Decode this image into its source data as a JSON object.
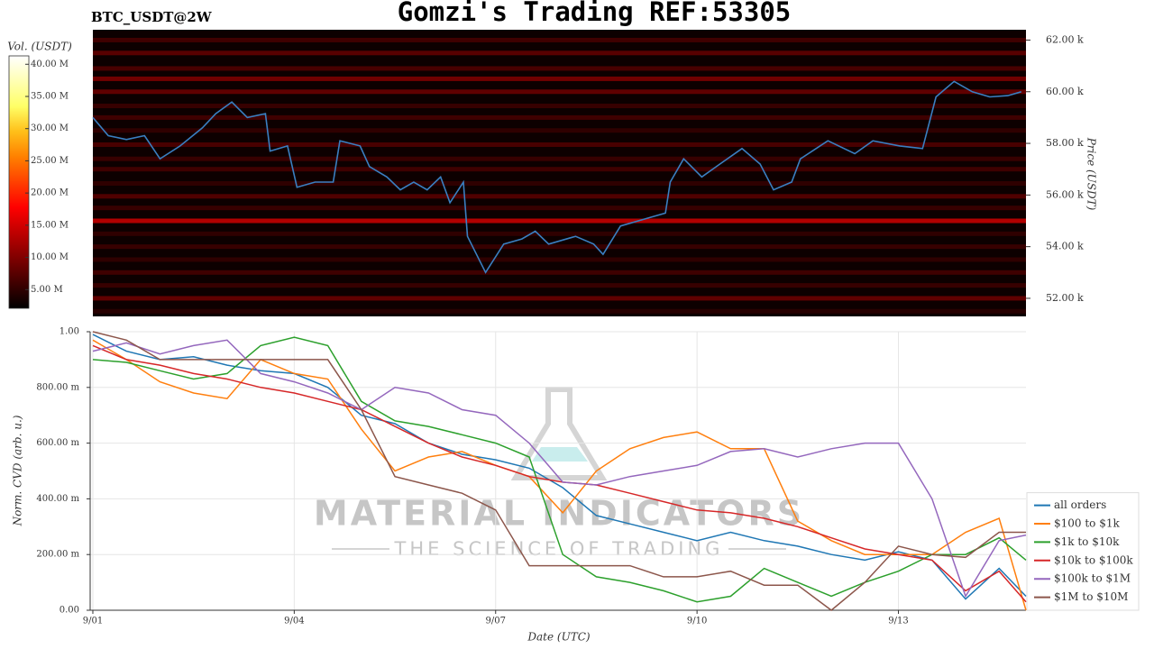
{
  "title": "Gomzi's Trading REF:53305",
  "watermark": {
    "brand": "MATERIAL INDICATORS",
    "slogan": "THE SCIENCE OF TRADING"
  },
  "chart_data": [
    {
      "type": "heatmap",
      "subtitle": "BTC_USDT@2W",
      "ylabel": "Price (USDT)",
      "xlim": [
        0,
        13.9
      ],
      "ylim": [
        51300,
        62400
      ],
      "yticks": [
        {
          "value": 52000,
          "label": "52.00 k"
        },
        {
          "value": 54000,
          "label": "54.00 k"
        },
        {
          "value": 56000,
          "label": "56.00 k"
        },
        {
          "value": 58000,
          "label": "58.00 k"
        },
        {
          "value": 60000,
          "label": "60.00 k"
        },
        {
          "value": 62000,
          "label": "62.00 k"
        }
      ],
      "colorbar": {
        "label": "Vol. (USDT)",
        "lim": [
          2100000,
          41300000
        ],
        "ticks": [
          {
            "value": 5000000,
            "label": "5.00 M"
          },
          {
            "value": 10000000,
            "label": "10.00 M"
          },
          {
            "value": 15000000,
            "label": "15.00 M"
          },
          {
            "value": 20000000,
            "label": "20.00 M"
          },
          {
            "value": 25000000,
            "label": "25.00 M"
          },
          {
            "value": 30000000,
            "label": "30.00 M"
          },
          {
            "value": 35000000,
            "label": "35.00 M"
          },
          {
            "value": 40000000,
            "label": "40.00 M"
          }
        ]
      },
      "bands": {
        "price": [
          62000,
          61500,
          60900,
          60500,
          60000,
          59450,
          59000,
          58500,
          57950,
          57400,
          57000,
          56450,
          55950,
          55500,
          55000,
          54500,
          54000,
          53500,
          53000,
          52500,
          52000,
          51500
        ],
        "volume": [
          6000000,
          7500000,
          6500000,
          9000000,
          8000000,
          5500000,
          6000000,
          5000000,
          6500000,
          5500000,
          6000000,
          5000000,
          7000000,
          5500000,
          13000000,
          5000000,
          5500000,
          5000000,
          6000000,
          5500000,
          8000000,
          4500000
        ]
      },
      "price_line": {
        "color": "#3a7fc1",
        "x": [
          0,
          0.23,
          0.5,
          0.77,
          1.0,
          1.3,
          1.63,
          1.83,
          2.07,
          2.3,
          2.57,
          2.64,
          2.9,
          3.04,
          3.31,
          3.58,
          3.68,
          3.98,
          4.12,
          4.38,
          4.58,
          4.78,
          4.98,
          5.18,
          5.32,
          5.52,
          5.58,
          5.85,
          6.12,
          6.39,
          6.59,
          6.79,
          7.19,
          7.46,
          7.6,
          7.86,
          8.26,
          8.53,
          8.6,
          8.8,
          9.07,
          9.34,
          9.67,
          9.94,
          10.14,
          10.41,
          10.54,
          10.95,
          11.35,
          11.62,
          12.02,
          12.36,
          12.56,
          12.83,
          13.1,
          13.36,
          13.63,
          13.83
        ],
        "values": [
          59000,
          58300,
          58150,
          58300,
          57400,
          57900,
          58600,
          59150,
          59600,
          59000,
          59150,
          57700,
          57900,
          56300,
          56500,
          56500,
          58100,
          57900,
          57100,
          56700,
          56200,
          56500,
          56200,
          56700,
          55700,
          56500,
          54400,
          53000,
          54100,
          54300,
          54600,
          54100,
          54400,
          54100,
          53700,
          54800,
          55100,
          55300,
          56500,
          57400,
          56700,
          57200,
          57800,
          57200,
          56200,
          56500,
          57400,
          58100,
          57600,
          58100,
          57900,
          57800,
          59800,
          60400,
          60000,
          59800,
          59850,
          60000
        ]
      }
    },
    {
      "type": "line",
      "xlabel": "Date (UTC)",
      "ylabel": "Norm. CVD (arb. u.)",
      "xlim": [
        -0.04,
        13.9
      ],
      "ylim": [
        0,
        1.0
      ],
      "grid": true,
      "legend": "lower right",
      "xticks": [
        {
          "value": 0,
          "label": "9/01"
        },
        {
          "value": 3,
          "label": "9/04"
        },
        {
          "value": 6,
          "label": "9/07"
        },
        {
          "value": 9,
          "label": "9/10"
        },
        {
          "value": 12,
          "label": "9/13"
        }
      ],
      "yticks": [
        {
          "value": 0,
          "label": "0.00"
        },
        {
          "value": 0.2,
          "label": "200.00 m"
        },
        {
          "value": 0.4,
          "label": "400.00 m"
        },
        {
          "value": 0.6,
          "label": "600.00 m"
        },
        {
          "value": 0.8,
          "label": "800.00 m"
        },
        {
          "value": 1.0,
          "label": "1.00"
        }
      ],
      "x": [
        0,
        0.5,
        1,
        1.5,
        2,
        2.5,
        3,
        3.5,
        4,
        4.5,
        5,
        5.5,
        6,
        6.5,
        7,
        7.5,
        8,
        8.5,
        9,
        9.5,
        10,
        10.5,
        11,
        11.5,
        12,
        12.5,
        13,
        13.5,
        13.9
      ],
      "series": [
        {
          "name": "all orders",
          "color": "#1f77b4",
          "values": [
            0.99,
            0.93,
            0.9,
            0.91,
            0.88,
            0.86,
            0.85,
            0.8,
            0.7,
            0.67,
            0.6,
            0.56,
            0.54,
            0.51,
            0.44,
            0.34,
            0.31,
            0.28,
            0.25,
            0.28,
            0.25,
            0.23,
            0.2,
            0.18,
            0.21,
            0.18,
            0.04,
            0.15,
            0.05
          ]
        },
        {
          "name": "$100 to $1k",
          "color": "#ff7f0e",
          "values": [
            0.97,
            0.9,
            0.82,
            0.78,
            0.76,
            0.9,
            0.85,
            0.83,
            0.65,
            0.5,
            0.55,
            0.57,
            0.52,
            0.48,
            0.35,
            0.5,
            0.58,
            0.62,
            0.64,
            0.58,
            0.58,
            0.32,
            0.25,
            0.2,
            0.2,
            0.2,
            0.28,
            0.33,
            0.0
          ]
        },
        {
          "name": "$1k to $10k",
          "color": "#2ca02c",
          "values": [
            0.9,
            0.89,
            0.86,
            0.83,
            0.85,
            0.95,
            0.98,
            0.95,
            0.75,
            0.68,
            0.66,
            0.63,
            0.6,
            0.55,
            0.2,
            0.12,
            0.1,
            0.07,
            0.03,
            0.05,
            0.15,
            0.1,
            0.05,
            0.1,
            0.14,
            0.2,
            0.2,
            0.26,
            0.18
          ]
        },
        {
          "name": "$10k to $100k",
          "color": "#d62728",
          "values": [
            0.95,
            0.9,
            0.88,
            0.85,
            0.83,
            0.8,
            0.78,
            0.75,
            0.72,
            0.66,
            0.6,
            0.55,
            0.52,
            0.48,
            0.46,
            0.45,
            0.42,
            0.39,
            0.36,
            0.35,
            0.33,
            0.3,
            0.26,
            0.22,
            0.2,
            0.18,
            0.07,
            0.14,
            0.03
          ]
        },
        {
          "name": "$100k to $1M",
          "color": "#9467bd",
          "values": [
            0.93,
            0.96,
            0.92,
            0.95,
            0.97,
            0.85,
            0.82,
            0.78,
            0.72,
            0.8,
            0.78,
            0.72,
            0.7,
            0.6,
            0.46,
            0.45,
            0.48,
            0.5,
            0.52,
            0.57,
            0.58,
            0.55,
            0.58,
            0.6,
            0.6,
            0.4,
            0.05,
            0.25,
            0.27
          ]
        },
        {
          "name": "$1M to $10M",
          "color": "#8c564b",
          "values": [
            1.0,
            0.97,
            0.9,
            0.9,
            0.9,
            0.9,
            0.9,
            0.9,
            0.72,
            0.48,
            0.45,
            0.42,
            0.36,
            0.16,
            0.16,
            0.16,
            0.16,
            0.12,
            0.12,
            0.14,
            0.09,
            0.09,
            0.0,
            0.1,
            0.23,
            0.2,
            0.19,
            0.28,
            0.28
          ]
        }
      ]
    }
  ]
}
